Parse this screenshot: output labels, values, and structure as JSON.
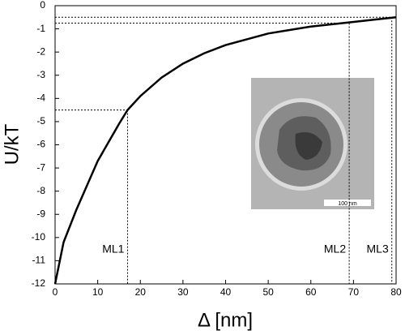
{
  "chart_data": {
    "type": "line",
    "x_label": "Δ [nm]",
    "y_label": "U/kT",
    "xlim": [
      0,
      80
    ],
    "xticks": [
      0,
      10,
      20,
      30,
      40,
      50,
      60,
      70,
      80
    ],
    "ylim": [
      -12,
      0
    ],
    "yticks": [
      -12,
      -11,
      -10,
      -9,
      -8,
      -7,
      -6,
      -5,
      -4,
      -3,
      -2,
      -1,
      0
    ],
    "grid": false,
    "series": [
      {
        "color": "#000000",
        "x": [
          0,
          2,
          5,
          10,
          15,
          17,
          20,
          25,
          30,
          35,
          40,
          45,
          50,
          55,
          60,
          65,
          69,
          75,
          79,
          80
        ],
        "values": [
          -12,
          -10.2,
          -8.8,
          -6.7,
          -5.1,
          -4.5,
          -3.9,
          -3.1,
          -2.5,
          -2.05,
          -1.7,
          -1.45,
          -1.2,
          -1.05,
          -0.9,
          -0.8,
          -0.72,
          -0.6,
          -0.52,
          -0.5
        ]
      }
    ],
    "markers": [
      {
        "label": "ML1",
        "x": 17,
        "y": -4.5
      },
      {
        "label": "ML2",
        "x": 69,
        "y": -0.75
      },
      {
        "label": "ML3",
        "x": 79,
        "y": -0.5
      }
    ],
    "inset_scale_label": "100 nm"
  }
}
